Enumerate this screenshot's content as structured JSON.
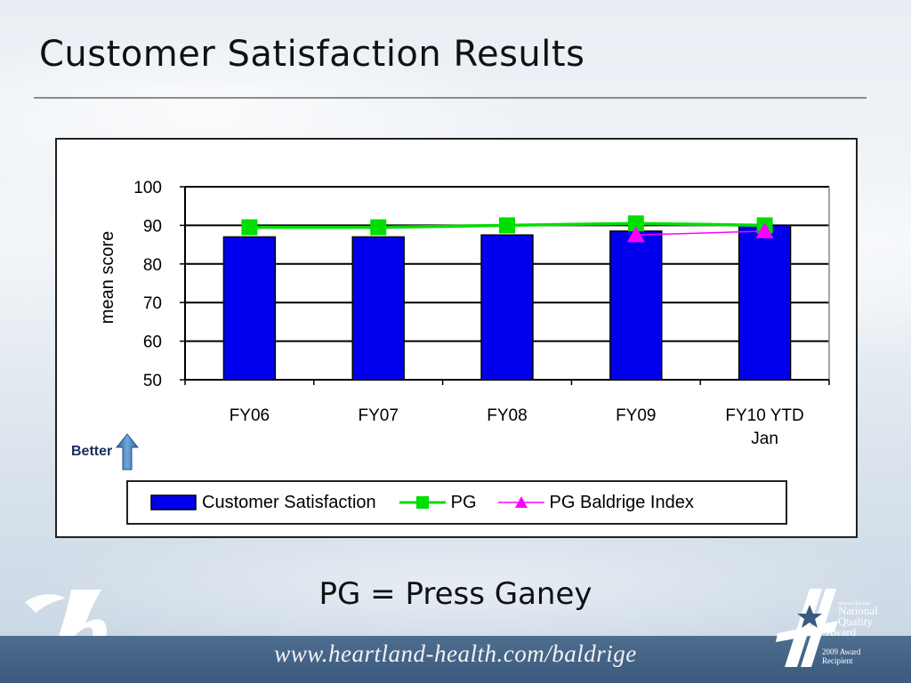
{
  "slide": {
    "title": "Customer Satisfaction Results",
    "footnote": "PG = Press Ganey",
    "footer_url": "www.heartland-health.com/baldrige",
    "better_label": "Better"
  },
  "award_logo": {
    "lines": [
      "Malcolm Baldrige",
      "National",
      "Quality",
      "Award",
      "2009 Award",
      "Recipient"
    ]
  },
  "colors": {
    "bar": "#0000ee",
    "pg_line": "#00dd00",
    "baldrige_line": "#ff00ff",
    "footer_band": "#3f5f83",
    "arrow": "#4a86c5"
  },
  "chart_data": {
    "type": "bar",
    "categories": [
      "FY06",
      "FY07",
      "FY08",
      "FY09",
      "FY10 YTD Jan"
    ],
    "category_lines": [
      [
        "FY06"
      ],
      [
        "FY07"
      ],
      [
        "FY08"
      ],
      [
        "FY09"
      ],
      [
        "FY10 YTD",
        "Jan"
      ]
    ],
    "ylabel": "mean score",
    "ylim": [
      50,
      100
    ],
    "yticks": [
      50,
      60,
      70,
      80,
      90,
      100
    ],
    "grid": true,
    "legend_position": "bottom",
    "series": [
      {
        "name": "Customer Satisfaction",
        "kind": "bar",
        "values": [
          87,
          87,
          87.5,
          88.5,
          90
        ]
      },
      {
        "name": "PG",
        "kind": "line",
        "marker": "square",
        "values": [
          89.5,
          89.5,
          90,
          90.5,
          90
        ]
      },
      {
        "name": "PG Baldrige Index",
        "kind": "line",
        "marker": "triangle",
        "values": [
          null,
          null,
          null,
          87.5,
          88.5
        ]
      }
    ]
  }
}
